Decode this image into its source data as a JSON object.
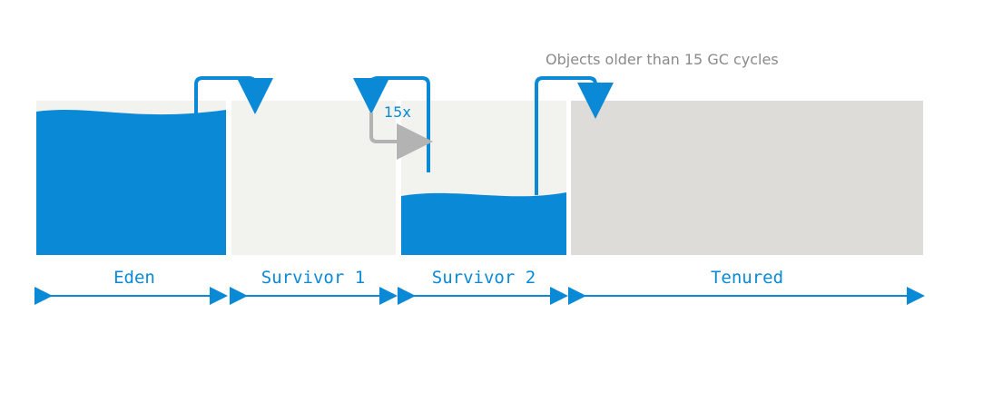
{
  "annotations": {
    "top_note": "Objects older than 15 GC cycles",
    "cycles": "15x"
  },
  "regions": [
    {
      "id": "eden",
      "label": "Eden",
      "fill_level": 0.9
    },
    {
      "id": "survivor-1",
      "label": "Survivor 1",
      "fill_level": 0
    },
    {
      "id": "survivor-2",
      "label": "Survivor 2",
      "fill_level": 0.38
    },
    {
      "id": "tenured",
      "label": "Tenured",
      "fill_level": 0
    }
  ],
  "colors": {
    "blue": "#0a8ad6",
    "light_panel": "#f2f2ef",
    "tenured_panel": "#dddcd8",
    "gray_arrow": "#b3b3b3",
    "text_gray": "#8a8a8a"
  }
}
